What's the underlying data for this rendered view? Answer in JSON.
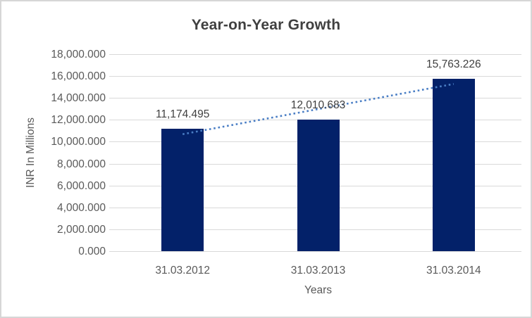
{
  "chart_data": {
    "type": "bar",
    "title": "Year-on-Year Growth",
    "categories": [
      "31.03.2012",
      "31.03.2013",
      "31.03.2014"
    ],
    "values": [
      11174.495,
      12010.683,
      15763.226
    ],
    "data_labels": [
      "11,174.495",
      "12,010.683",
      "15,763.226"
    ],
    "xlabel": "Years",
    "ylabel": "INR In Millions",
    "ylim": [
      0,
      18000
    ],
    "ytick_step": 2000,
    "ytick_values": [
      0,
      2000,
      4000,
      6000,
      8000,
      10000,
      12000,
      14000,
      16000,
      18000
    ],
    "ytick_labels": [
      "0.000",
      "2,000.000",
      "4,000.000",
      "6,000.000",
      "8,000.000",
      "10,000.000",
      "12,000.000",
      "14,000.000",
      "16,000.000",
      "18,000.000"
    ],
    "grid": true,
    "legend": "none",
    "trendline": {
      "type": "linear",
      "style": "dotted",
      "fit_value_at_first_category": 10688.436,
      "fit_value_at_last_category": 15277.167
    }
  },
  "colors": {
    "background": "#FFFFFF",
    "frame_border": "#D6D6D6",
    "gridline": "#D9D9D9",
    "bar": "#032169",
    "trendline": "#4A7EC5",
    "title_text": "#404040",
    "data_label_text": "#404040",
    "axis_text": "#595959"
  }
}
